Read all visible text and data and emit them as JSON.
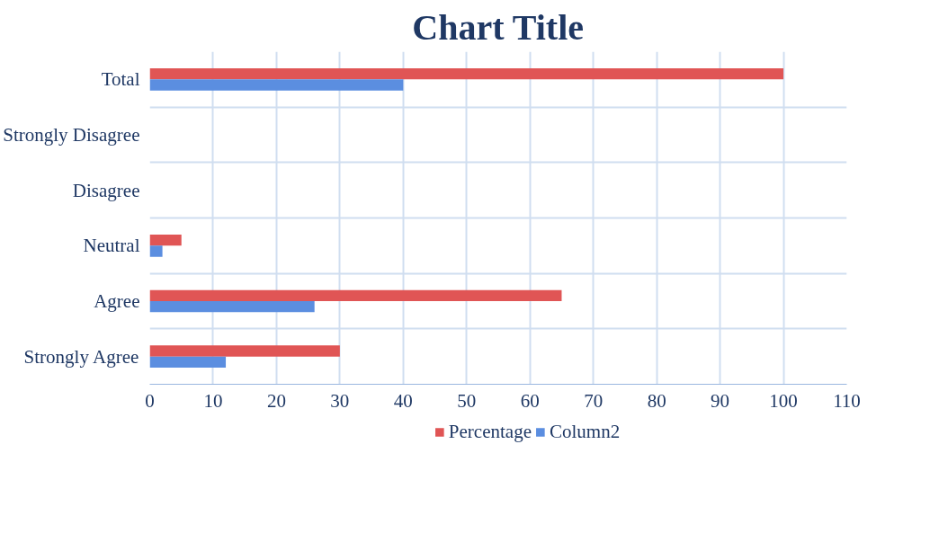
{
  "chart_data": {
    "type": "bar",
    "orientation": "horizontal",
    "title": "Chart Title",
    "categories": [
      "Total",
      "Strongly Disagree",
      "Disagree",
      "Neutral",
      "Agree",
      "Strongly Agree"
    ],
    "series": [
      {
        "name": "Percentage",
        "color": "#e05555",
        "values": [
          100,
          0,
          0,
          5,
          65,
          30
        ]
      },
      {
        "name": "Column2",
        "color": "#5b8ee0",
        "values": [
          40,
          0,
          0,
          2,
          26,
          12
        ]
      }
    ],
    "xlim": [
      0,
      110
    ],
    "xticks": [
      0,
      10,
      20,
      30,
      40,
      50,
      60,
      70,
      80,
      90,
      100,
      110
    ],
    "grid": true,
    "legend": "bottom"
  }
}
